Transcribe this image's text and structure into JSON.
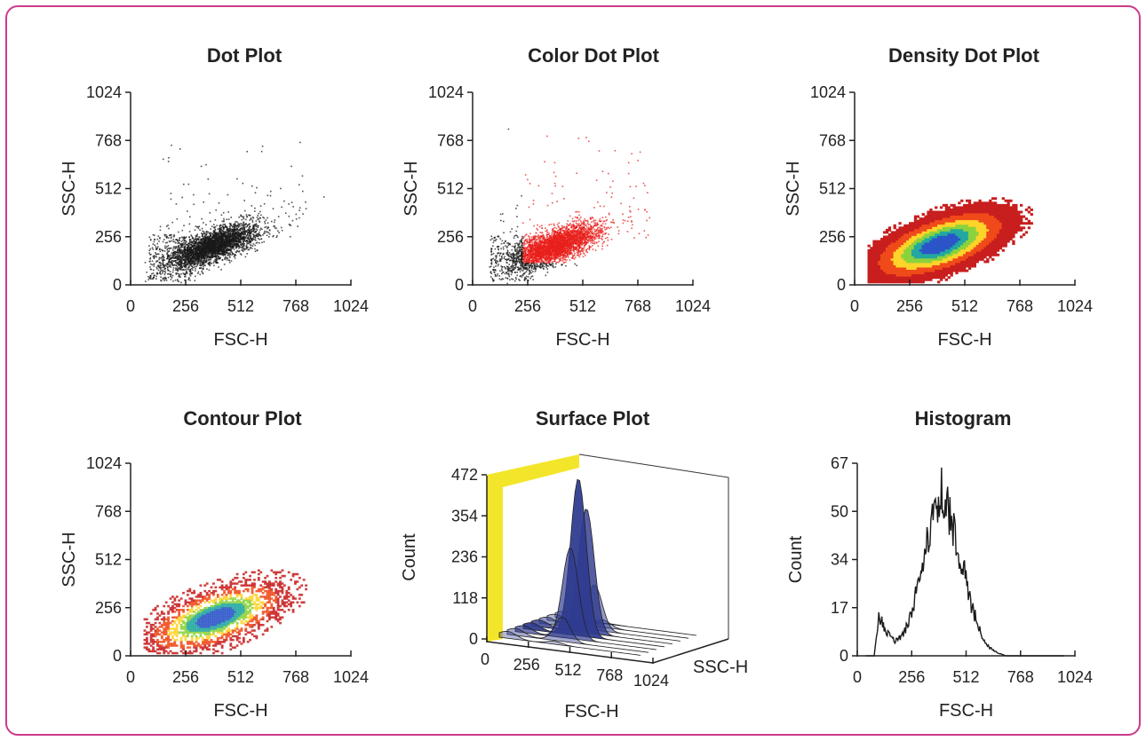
{
  "colors": {
    "frame": "#cc3a8c",
    "dots": "#1a1a1a",
    "gated_dots": "#e8201c",
    "surface": "#2f3b8f",
    "surface_wall": "#f3e62a",
    "density_scale": [
      "#c81e1e",
      "#f04a1a",
      "#ffd42a",
      "#8cd23c",
      "#22a8a0",
      "#2b55c8"
    ]
  },
  "chart_data": [
    {
      "type": "scatter",
      "title": "Dot Plot",
      "xlabel": "FSC-H",
      "ylabel": "SSC-H",
      "xticks": [
        "0",
        "256",
        "512",
        "768",
        "1024"
      ],
      "yticks": [
        "0",
        "256",
        "512",
        "768",
        "1024"
      ],
      "xlim": [
        0,
        1024
      ],
      "ylim": [
        0,
        1024
      ],
      "population": {
        "center": [
          380,
          210
        ],
        "spread": [
          160,
          75
        ]
      }
    },
    {
      "type": "scatter",
      "title": "Color Dot Plot",
      "xlabel": "FSC-H",
      "ylabel": "SSC-H",
      "xticks": [
        "0",
        "256",
        "512",
        "768",
        "1024"
      ],
      "yticks": [
        "0",
        "256",
        "512",
        "768",
        "1024"
      ],
      "xlim": [
        0,
        1024
      ],
      "ylim": [
        0,
        1024
      ],
      "population": {
        "center": [
          380,
          210
        ],
        "spread": [
          160,
          75
        ]
      },
      "gate": {
        "fsc_min": 230,
        "ssc_min": 120
      }
    },
    {
      "type": "heatmap",
      "title": "Density Dot Plot",
      "xlabel": "FSC-H",
      "ylabel": "SSC-H",
      "xticks": [
        "0",
        "256",
        "512",
        "768",
        "1024"
      ],
      "yticks": [
        "0",
        "256",
        "512",
        "768",
        "1024"
      ],
      "xlim": [
        0,
        1024
      ],
      "ylim": [
        0,
        1024
      ],
      "peak": [
        390,
        210
      ]
    },
    {
      "type": "heatmap",
      "title": "Contour Plot",
      "xlabel": "FSC-H",
      "ylabel": "SSC-H",
      "xticks": [
        "0",
        "256",
        "512",
        "768",
        "1024"
      ],
      "yticks": [
        "0",
        "256",
        "512",
        "768",
        "1024"
      ],
      "xlim": [
        0,
        1024
      ],
      "ylim": [
        0,
        1024
      ],
      "peak": [
        390,
        200
      ]
    },
    {
      "type": "area",
      "title": "Surface Plot",
      "xlabel": "FSC-H",
      "ylabel": "Count",
      "zlabel": "SSC-H",
      "xticks": [
        "0",
        "256",
        "512",
        "768",
        "1024"
      ],
      "yticks": [
        "0",
        "118",
        "236",
        "354",
        "472"
      ],
      "ylim": [
        0,
        472
      ],
      "peak": {
        "fsc": 400,
        "count": 460
      }
    },
    {
      "type": "line",
      "title": "Histogram",
      "xlabel": "FSC-H",
      "ylabel": "Count",
      "xticks": [
        "0",
        "256",
        "512",
        "768",
        "1024"
      ],
      "yticks": [
        "0",
        "17",
        "34",
        "50",
        "67"
      ],
      "xlim": [
        0,
        1024
      ],
      "ylim": [
        0,
        67
      ],
      "series": [
        {
          "x": [
            40,
            80,
            100,
            140,
            180,
            220,
            260,
            300,
            340,
            380,
            400,
            420,
            460,
            500,
            540,
            580,
            620,
            660,
            700,
            760,
            1000
          ],
          "y": [
            0,
            0,
            14,
            8,
            5,
            8,
            16,
            29,
            44,
            56,
            60,
            54,
            42,
            30,
            17,
            8,
            3,
            1,
            0,
            0,
            0
          ]
        }
      ]
    }
  ]
}
